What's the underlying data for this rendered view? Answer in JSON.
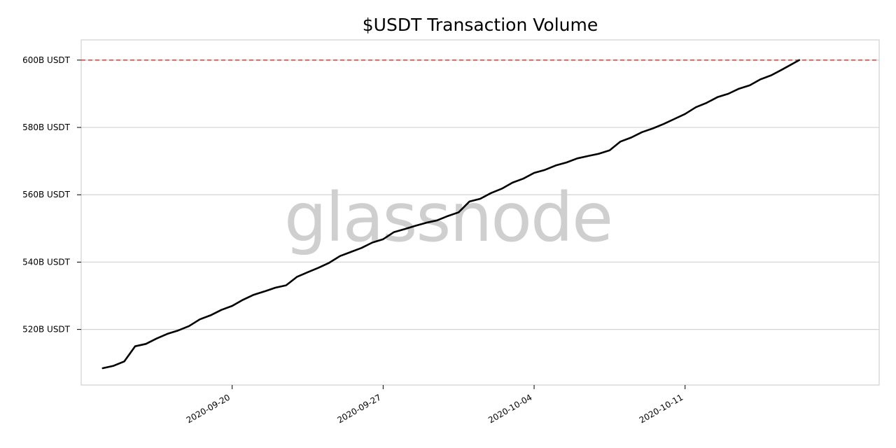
{
  "chart_data": {
    "type": "line",
    "title": "$USDT Transaction Volume",
    "xlabel": "",
    "ylabel": "",
    "watermark": "glassnode",
    "x_range": [
      "2020-09-13",
      "2020-10-20"
    ],
    "ylim": [
      503.5,
      606
    ],
    "grid": "horizontal",
    "y_ticks": [
      {
        "value": 520,
        "label": "520B USDT"
      },
      {
        "value": 540,
        "label": "540B USDT"
      },
      {
        "value": 560,
        "label": "560B USDT"
      },
      {
        "value": 580,
        "label": "580B USDT"
      },
      {
        "value": 600,
        "label": "600B USDT"
      }
    ],
    "x_ticks": [
      {
        "value": "2020-09-20",
        "label": "2020-09-20"
      },
      {
        "value": "2020-09-27",
        "label": "2020-09-27"
      },
      {
        "value": "2020-10-04",
        "label": "2020-10-04"
      },
      {
        "value": "2020-10-11",
        "label": "2020-10-11"
      }
    ],
    "reference_line": {
      "value": 600,
      "color": "#e03c31",
      "style": "dashed"
    },
    "series": [
      {
        "color": "#000000",
        "x": [
          "2020-09-14",
          "2020-09-14T12:00",
          "2020-09-15",
          "2020-09-15T12:00",
          "2020-09-16",
          "2020-09-16T12:00",
          "2020-09-17",
          "2020-09-17T12:00",
          "2020-09-18",
          "2020-09-18T12:00",
          "2020-09-19",
          "2020-09-19T12:00",
          "2020-09-20",
          "2020-09-20T12:00",
          "2020-09-21",
          "2020-09-21T12:00",
          "2020-09-22",
          "2020-09-22T12:00",
          "2020-09-23",
          "2020-09-23T12:00",
          "2020-09-24",
          "2020-09-24T12:00",
          "2020-09-25",
          "2020-09-25T12:00",
          "2020-09-26",
          "2020-09-26T12:00",
          "2020-09-27",
          "2020-09-27T12:00",
          "2020-09-28",
          "2020-09-28T12:00",
          "2020-09-29",
          "2020-09-29T12:00",
          "2020-09-30",
          "2020-09-30T12:00",
          "2020-10-01",
          "2020-10-01T12:00",
          "2020-10-02",
          "2020-10-02T12:00",
          "2020-10-03",
          "2020-10-03T12:00",
          "2020-10-04",
          "2020-10-04T12:00",
          "2020-10-05",
          "2020-10-05T12:00",
          "2020-10-06",
          "2020-10-06T12:00",
          "2020-10-07",
          "2020-10-07T12:00",
          "2020-10-08",
          "2020-10-08T12:00",
          "2020-10-09",
          "2020-10-09T12:00",
          "2020-10-10",
          "2020-10-10T12:00",
          "2020-10-11",
          "2020-10-11T12:00",
          "2020-10-12",
          "2020-10-12T12:00",
          "2020-10-13",
          "2020-10-13T12:00",
          "2020-10-14",
          "2020-10-14T12:00",
          "2020-10-15",
          "2020-10-15T12:00",
          "2020-10-16T07:00"
        ],
        "y": [
          508.5,
          509.2,
          510.5,
          515.0,
          515.7,
          517.3,
          518.7,
          519.7,
          521.0,
          523.0,
          524.2,
          525.8,
          527.0,
          528.8,
          530.3,
          531.3,
          532.4,
          533.1,
          535.6,
          537.0,
          538.3,
          539.8,
          541.8,
          543.0,
          544.2,
          545.8,
          546.8,
          548.9,
          549.8,
          550.8,
          551.7,
          552.4,
          553.7,
          554.8,
          558.0,
          558.8,
          560.5,
          561.8,
          563.6,
          564.8,
          566.5,
          567.4,
          568.7,
          569.6,
          570.8,
          571.5,
          572.2,
          573.2,
          575.8,
          577.0,
          578.6,
          579.7,
          581.0,
          582.5,
          584.0,
          586.0,
          587.3,
          589.0,
          590.0,
          591.5,
          592.5,
          594.3,
          595.5,
          597.2,
          600.0
        ]
      }
    ]
  }
}
